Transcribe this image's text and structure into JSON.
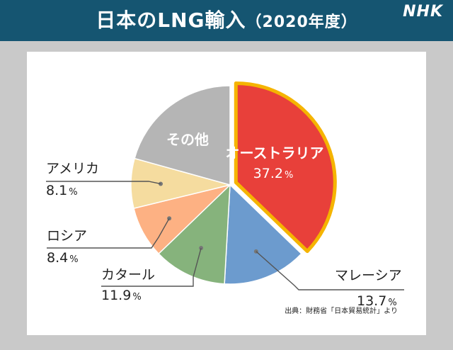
{
  "header": {
    "title": "日本のLNG輸入",
    "subtitle": "（2020年度）",
    "logo": "NHK"
  },
  "source": "出典：財務省「日本貿易統計」より",
  "chart_data": {
    "type": "pie",
    "slices": [
      {
        "name": "オーストラリア",
        "value": 37.2,
        "value_label": "37.2",
        "color": "#e8403a",
        "highlight": true
      },
      {
        "name": "マレーシア",
        "value": 13.7,
        "value_label": "13.7",
        "color": "#6c9bce"
      },
      {
        "name": "カタール",
        "value": 11.9,
        "value_label": "11.9",
        "color": "#86b37c"
      },
      {
        "name": "ロシア",
        "value": 8.4,
        "value_label": "8.4",
        "color": "#fdb183"
      },
      {
        "name": "アメリカ",
        "value": 8.1,
        "value_label": "8.1",
        "color": "#f5dc9f"
      },
      {
        "name": "その他",
        "value": 20.7,
        "value_label": "",
        "color": "#b5b5b5"
      }
    ],
    "unit": "%",
    "start_angle": "12 o'clock",
    "direction": "clockwise",
    "highlight_color": "#f5b400"
  }
}
